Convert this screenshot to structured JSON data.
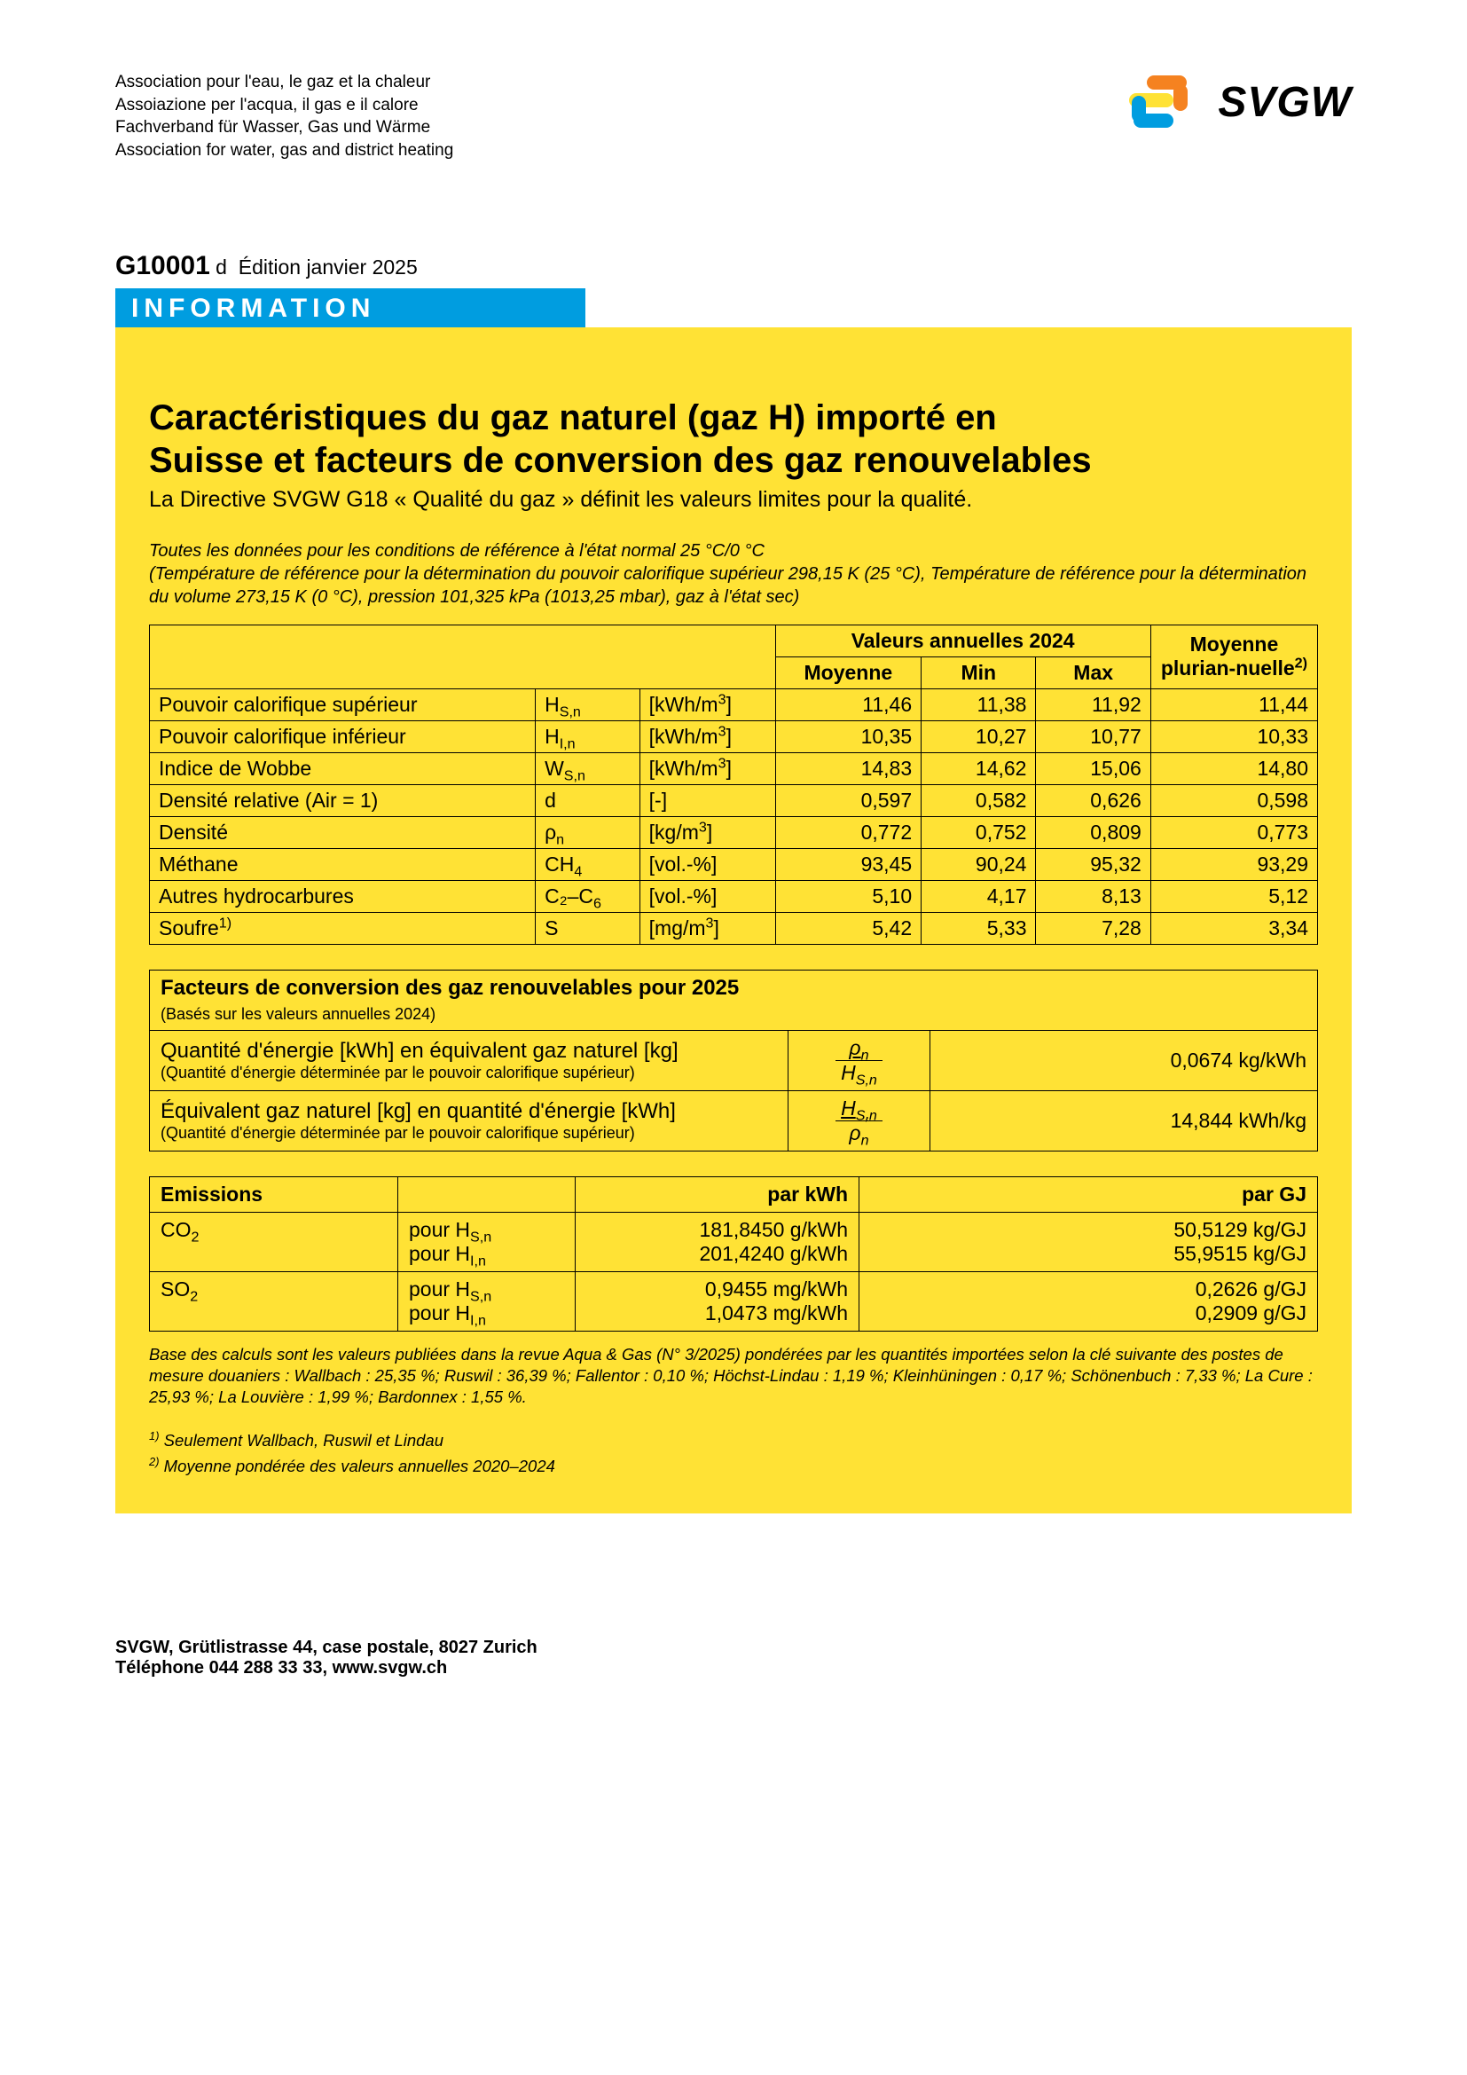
{
  "colors": {
    "yellow_panel": "#ffe235",
    "info_banner": "#009de0",
    "logo_orange": "#f58220",
    "logo_blue": "#009de0",
    "text": "#000000",
    "background": "#ffffff"
  },
  "header": {
    "assoc_lines": [
      "Association pour l'eau, le gaz et la chaleur",
      "Assoiazione per l'acqua, il gas e il calore",
      "Fachverband für Wasser, Gas und Wärme",
      "Association for water, gas and district heating"
    ],
    "logo_text": "SVGW"
  },
  "doc_id": {
    "number": "G10001",
    "suffix": "d",
    "edition": "Édition janvier 2025"
  },
  "info_label": "INFORMATION",
  "title_line1": "Caractéristiques du gaz naturel (gaz H) importé en",
  "title_line2": "Suisse et facteurs de conversion des gaz renouvelables",
  "subtitle": "La Directive SVGW G18 « Qualité du gaz » définit les valeurs limites pour la qualité.",
  "note1": "Toutes les données pour les conditions de référence à l'état normal 25 °C/0 °C",
  "note2": "(Température de référence pour la détermination du pouvoir calorifique supérieur 298,15 K (25 °C), Température de référence pour la détermination du volume 273,15 K (0 °C), pression 101,325 kPa (1013,25 mbar), gaz à l'état sec)",
  "table1": {
    "header_annual": "Valeurs annuelles 2024",
    "header_mean": "Moyenne",
    "header_min": "Min",
    "header_max": "Max",
    "header_multi": "Moyenne plurian-nuelle",
    "header_multi_note": "2)",
    "rows": [
      {
        "label": "Pouvoir calorifique supérieur",
        "sym": "H",
        "sub": "S,n",
        "unit": "[kWh/m³]",
        "mean": "11,46",
        "min": "11,38",
        "max": "11,92",
        "multi": "11,44"
      },
      {
        "label": "Pouvoir calorifique inférieur",
        "sym": "H",
        "sub": "I,n",
        "unit": "[kWh/m³]",
        "mean": "10,35",
        "min": "10,27",
        "max": "10,77",
        "multi": "10,33"
      },
      {
        "label": "Indice de Wobbe",
        "sym": "W",
        "sub": "S,n",
        "unit": "[kWh/m³]",
        "mean": "14,83",
        "min": "14,62",
        "max": "15,06",
        "multi": "14,80"
      },
      {
        "label": "Densité relative (Air = 1)",
        "sym": "d",
        "sub": "",
        "unit": "[-]",
        "mean": "0,597",
        "min": "0,582",
        "max": "0,626",
        "multi": "0,598"
      },
      {
        "label": "Densité",
        "sym": "ρ",
        "sub": "n",
        "unit": "[kg/m³]",
        "mean": "0,772",
        "min": "0,752",
        "max": "0,809",
        "multi": "0,773"
      },
      {
        "label": "Méthane",
        "sym": "CH",
        "sub": "4",
        "unit": "[vol.-%]",
        "mean": "93,45",
        "min": "90,24",
        "max": "95,32",
        "multi": "93,29"
      },
      {
        "label": "Autres hydrocarbures",
        "sym": "C₂–C",
        "sub": "6",
        "unit": "[vol.-%]",
        "mean": "5,10",
        "min": "4,17",
        "max": "8,13",
        "multi": "5,12"
      },
      {
        "label": "Soufre",
        "label_note": "1)",
        "sym": "S",
        "sub": "",
        "unit": "[mg/m³]",
        "mean": "5,42",
        "min": "5,33",
        "max": "7,28",
        "multi": "3,34"
      }
    ]
  },
  "conv": {
    "title": "Facteurs de conversion des gaz renouvelables pour 2025",
    "title_sub": "(Basés sur les valeurs annuelles 2024)",
    "rows": [
      {
        "desc": "Quantité d'énergie [kWh] en équivalent gaz naturel [kg]",
        "desc_sub": "(Quantité d'énergie déterminée par le pouvoir calorifique supérieur)",
        "frac_top": "ρₙ",
        "frac_bot": "H_S,n",
        "underline": "top",
        "value": "0,0674 kg/kWh"
      },
      {
        "desc": "Équivalent gaz naturel [kg] en quantité d'énergie [kWh]",
        "desc_sub": "(Quantité d'énergie déterminée par le pouvoir calorifique supérieur)",
        "frac_top": "H_S,n",
        "frac_bot": "ρₙ",
        "underline": "top",
        "value": "14,844 kWh/kg"
      }
    ]
  },
  "emissions": {
    "header_label": "Emissions",
    "header_kwh": "par kWh",
    "header_gj": "par GJ",
    "rows": [
      {
        "label": "CO₂",
        "lines": [
          {
            "for": "pour H",
            "sub": "S,n",
            "kwh": "181,8450 g/kWh",
            "gj": "50,5129 kg/GJ"
          },
          {
            "for": "pour H",
            "sub": "I,n",
            "kwh": "201,4240 g/kWh",
            "gj": "55,9515 kg/GJ"
          }
        ]
      },
      {
        "label": "SO₂",
        "lines": [
          {
            "for": "pour H",
            "sub": "S,n",
            "kwh": "0,9455 mg/kWh",
            "gj": "0,2626 g/GJ"
          },
          {
            "for": "pour H",
            "sub": "I,n",
            "kwh": "1,0473 mg/kWh",
            "gj": "0,2909 g/GJ"
          }
        ]
      }
    ]
  },
  "footnote_main": "Base des calculs sont les valeurs publiées dans la revue Aqua & Gas (N° 3/2025) pondérées par les quantités importées selon la clé suivante des postes de mesure douaniers : Wallbach : 25,35 %; Ruswil : 36,39 %; Fallentor : 0,10 %; Höchst-Lindau : 1,19 %; Kleinhüningen : 0,17 %; Schönenbuch : 7,33 %; La Cure : 25,93 %; La Louvière : 1,99 %; Bardonnex : 1,55 %.",
  "footnote_1": "Seulement Wallbach, Ruswil et Lindau",
  "footnote_2": "Moyenne pondérée des valeurs annuelles 2020–2024",
  "footer": {
    "line1": "SVGW, Grütlistrasse 44, case postale, 8027 Zurich",
    "line2": "Téléphone 044 288 33 33, www.svgw.ch"
  }
}
